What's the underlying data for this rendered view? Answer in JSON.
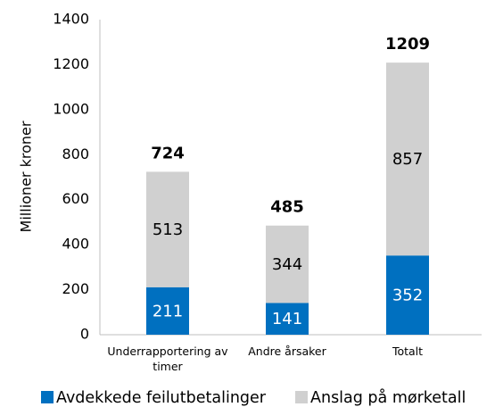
{
  "chart_data": {
    "type": "stacked_bar",
    "ylabel": "Millioner kroner",
    "categories": [
      "Underrapportering av timer",
      "Andre årsaker",
      "Totalt"
    ],
    "series": [
      {
        "name": "Avdekkede feilutbetalinger",
        "color": "#0070c0",
        "values": [
          211,
          141,
          352
        ],
        "label_color": "#ffffff"
      },
      {
        "name": "Anslag på mørketall",
        "color": "#d0d0d0",
        "values": [
          513,
          344,
          857
        ],
        "label_color": "#000000"
      }
    ],
    "totals": [
      724,
      485,
      1209
    ],
    "ylim": [
      0,
      1400
    ],
    "yticks": [
      0,
      200,
      400,
      600,
      800,
      1000,
      1200,
      1400
    ],
    "grid": false,
    "legend": "bottom"
  }
}
